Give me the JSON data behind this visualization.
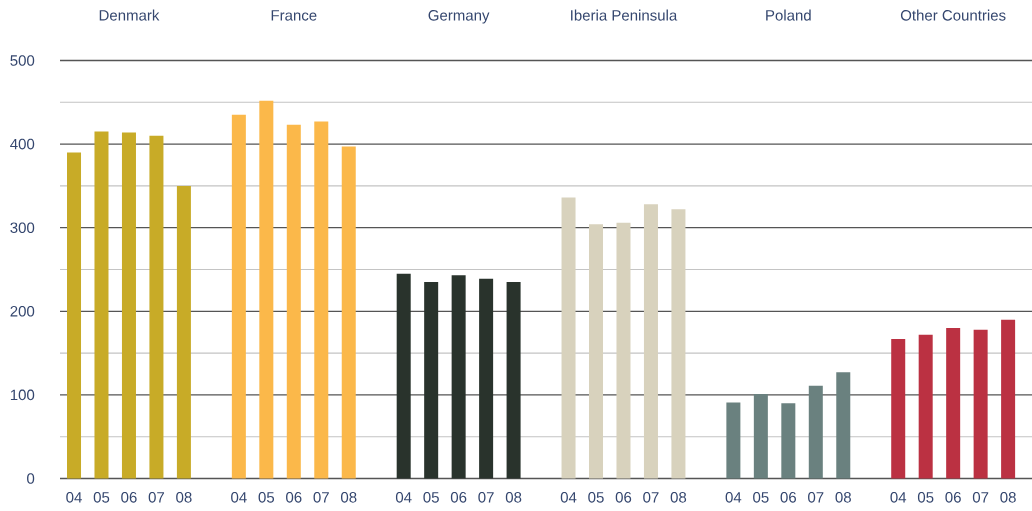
{
  "chart_data": {
    "type": "bar",
    "categories": [
      "Denmark",
      "France",
      "Germany",
      "Iberia Peninsula",
      "Poland",
      "Other Countries"
    ],
    "series": [
      {
        "name": "04",
        "colors": [
          "#c8ab27",
          "#fbb84a",
          "#29332c",
          "#d8d2bd",
          "#6a817f",
          "#bb3142"
        ],
        "values": [
          390,
          435,
          245,
          336,
          91,
          167
        ]
      },
      {
        "name": "05",
        "colors": [
          "#c8ab27",
          "#fbb84a",
          "#29332c",
          "#d8d2bd",
          "#6a817f",
          "#bb3142"
        ],
        "values": [
          415,
          452,
          235,
          304,
          101,
          172
        ]
      },
      {
        "name": "06",
        "colors": [
          "#c8ab27",
          "#fbb84a",
          "#29332c",
          "#d8d2bd",
          "#6a817f",
          "#bb3142"
        ],
        "values": [
          414,
          423,
          243,
          306,
          90,
          180
        ]
      },
      {
        "name": "07",
        "colors": [
          "#c8ab27",
          "#fbb84a",
          "#29332c",
          "#d8d2bd",
          "#6a817f",
          "#bb3142"
        ],
        "values": [
          410,
          427,
          239,
          328,
          111,
          178
        ]
      },
      {
        "name": "08",
        "colors": [
          "#c8ab27",
          "#fbb84a",
          "#29332c",
          "#d8d2bd",
          "#6a817f",
          "#bb3142"
        ],
        "values": [
          350,
          397,
          235,
          322,
          127,
          190
        ]
      }
    ],
    "ylim": [
      0,
      500
    ],
    "yticks": [
      0,
      {
        "value": 50,
        "label": null
      },
      100,
      {
        "value": 150,
        "label": null
      },
      200,
      {
        "value": 250,
        "label": null
      },
      300,
      {
        "value": 350,
        "label": null
      },
      400,
      {
        "value": 450,
        "label": null
      },
      500
    ],
    "grid": "y"
  }
}
